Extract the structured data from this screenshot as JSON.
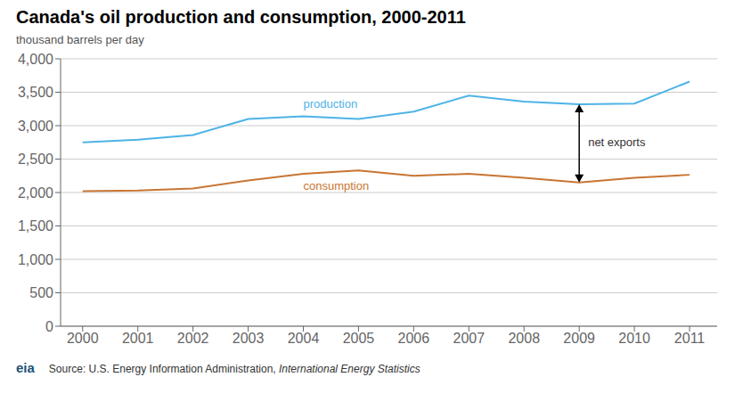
{
  "chart_data": {
    "type": "line",
    "title": "Canada's oil production and consumption, 2000-2011",
    "y_label": "thousand barrels per day",
    "x": [
      2000,
      2001,
      2002,
      2003,
      2004,
      2005,
      2006,
      2007,
      2008,
      2009,
      2010,
      2011
    ],
    "xlim": [
      1999.6,
      2011.5
    ],
    "xticks": [
      2000,
      2001,
      2002,
      2003,
      2004,
      2005,
      2006,
      2007,
      2008,
      2009,
      2010,
      2011
    ],
    "ylim": [
      0,
      4000
    ],
    "yticks": [
      0,
      500,
      {
        "value": 1000,
        "label": "1,000"
      },
      {
        "value": 1500,
        "label": "1,500"
      },
      {
        "value": 2000,
        "label": "2,000"
      },
      {
        "value": 2500,
        "label": "2,500"
      },
      {
        "value": 3000,
        "label": "3,000"
      },
      {
        "value": 3500,
        "label": "3,500"
      },
      {
        "value": 4000,
        "label": "4,000"
      }
    ],
    "grid": true,
    "series": [
      {
        "name": "production",
        "color": "#4db3e6",
        "values": [
          2750,
          2790,
          2860,
          3100,
          3140,
          3100,
          3210,
          3450,
          3360,
          3320,
          3330,
          3660
        ]
      },
      {
        "name": "consumption",
        "color": "#c87533",
        "values": [
          2020,
          2030,
          2060,
          2180,
          2280,
          2330,
          2250,
          2280,
          2220,
          2150,
          2220,
          2265
        ]
      }
    ],
    "annotations": [
      {
        "text": "net exports",
        "x": 2009
      }
    ],
    "source": "Source: U.S. Energy Information Administration, ",
    "source_italic": "International Energy Statistics",
    "logo": "eia"
  }
}
